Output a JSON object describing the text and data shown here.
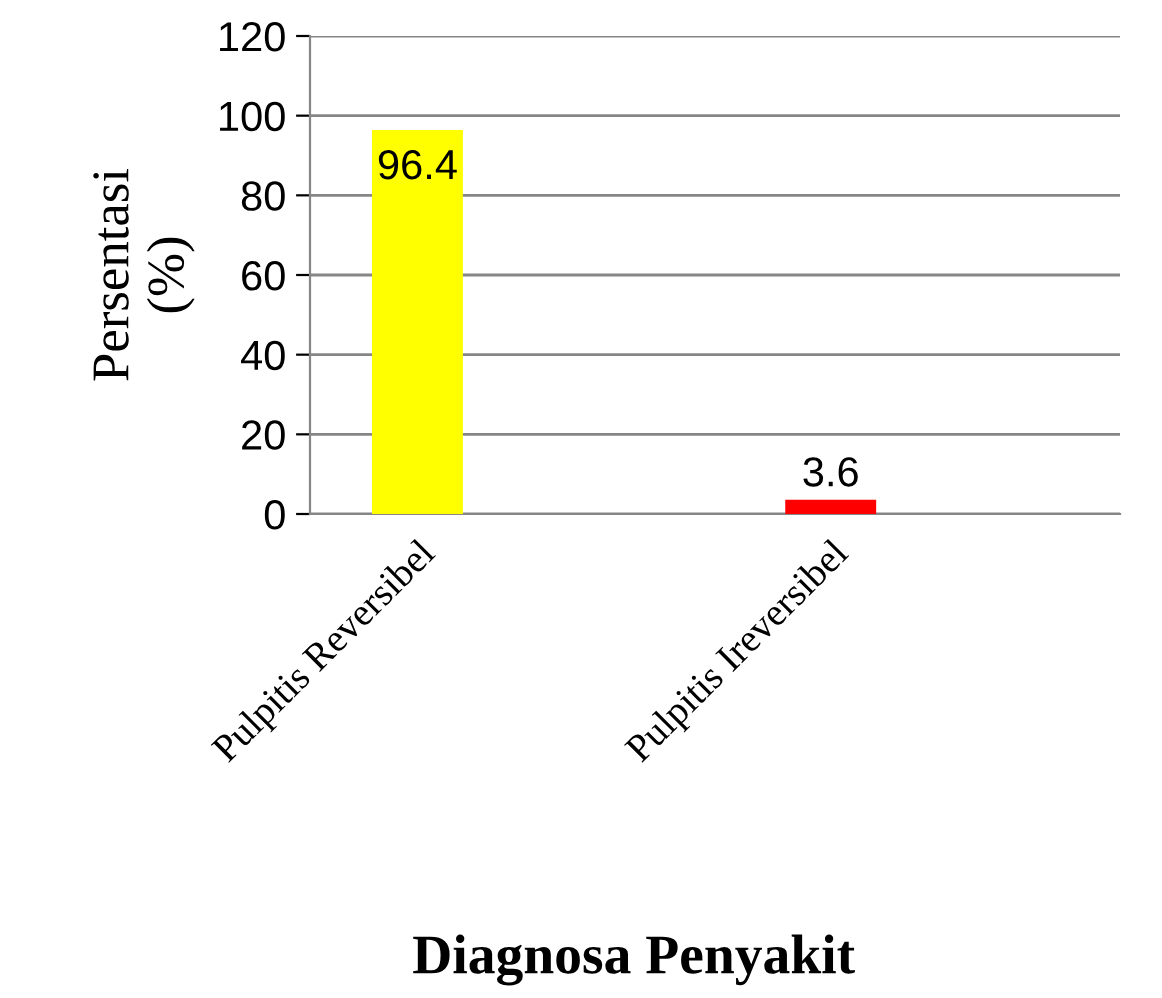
{
  "chart_data": {
    "type": "bar",
    "xlabel": "Diagnosa Penyakit",
    "ylabel": "Persentasi\n(%)",
    "categories": [
      "Pulpitis Reversibel",
      "Pulpitis Ireversibel"
    ],
    "values": [
      96.4,
      3.6
    ],
    "colors": [
      "#ffff00",
      "#ff0000"
    ],
    "ylim": [
      0,
      120
    ],
    "yticks": [
      0,
      20,
      40,
      60,
      80,
      100,
      120
    ],
    "grid": "y",
    "data_labels": true
  }
}
